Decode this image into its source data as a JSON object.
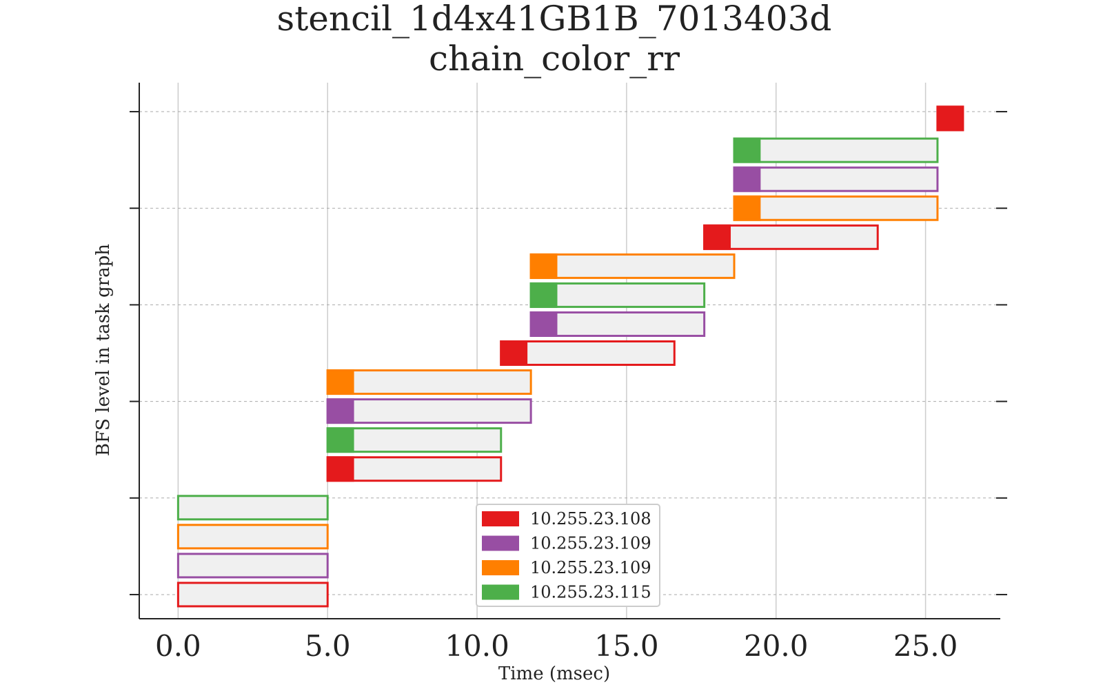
{
  "chart_data": {
    "type": "bar",
    "subtype": "gantt",
    "title": "stencil_1d4x41GB1B_7013403d",
    "subtitle": "chain_color_rr",
    "xlabel": "Time (msec)",
    "ylabel": "BFS level in task graph",
    "xlim": [
      -1.3,
      27.5
    ],
    "ylim": [
      -0.25,
      5.3
    ],
    "x_ticks": [
      "0.0",
      "5.0",
      "10.0",
      "15.0",
      "20.0",
      "25.0"
    ],
    "x_tick_values": [
      0,
      5,
      10,
      15,
      20,
      25
    ],
    "y_tick_values": [
      0,
      1,
      2,
      3,
      4,
      5
    ],
    "grid": {
      "x": true,
      "y": true
    },
    "legend_position": "bottom-center",
    "series": [
      {
        "name": "10.255.23.108",
        "color": "#e41a1c"
      },
      {
        "name": "10.255.23.109",
        "color": "#984ea3"
      },
      {
        "name": "10.255.23.109",
        "color": "#ff7f00"
      },
      {
        "name": "10.255.23.115",
        "color": "#4daf4a"
      }
    ],
    "tasks": [
      {
        "series": 0,
        "level": 0.0,
        "start": 0.0,
        "end": 5.0,
        "setup": 0.0
      },
      {
        "series": 1,
        "level": 0.3,
        "start": 0.0,
        "end": 5.0,
        "setup": 0.0
      },
      {
        "series": 2,
        "level": 0.6,
        "start": 0.0,
        "end": 5.0,
        "setup": 0.0
      },
      {
        "series": 3,
        "level": 0.9,
        "start": 0.0,
        "end": 5.0,
        "setup": 0.0
      },
      {
        "series": 0,
        "level": 1.3,
        "start": 5.0,
        "end": 10.8,
        "setup": 0.85
      },
      {
        "series": 3,
        "level": 1.6,
        "start": 5.0,
        "end": 10.8,
        "setup": 0.85
      },
      {
        "series": 1,
        "level": 1.9,
        "start": 5.0,
        "end": 11.8,
        "setup": 0.85
      },
      {
        "series": 2,
        "level": 2.2,
        "start": 5.0,
        "end": 11.8,
        "setup": 0.85
      },
      {
        "series": 0,
        "level": 2.5,
        "start": 10.8,
        "end": 16.6,
        "setup": 0.85
      },
      {
        "series": 1,
        "level": 2.8,
        "start": 11.8,
        "end": 17.6,
        "setup": 0.85
      },
      {
        "series": 3,
        "level": 3.1,
        "start": 11.8,
        "end": 17.6,
        "setup": 0.85
      },
      {
        "series": 2,
        "level": 3.4,
        "start": 11.8,
        "end": 18.6,
        "setup": 0.85
      },
      {
        "series": 0,
        "level": 3.7,
        "start": 17.6,
        "end": 23.4,
        "setup": 0.85
      },
      {
        "series": 2,
        "level": 4.0,
        "start": 18.6,
        "end": 25.4,
        "setup": 0.85
      },
      {
        "series": 1,
        "level": 4.3,
        "start": 18.6,
        "end": 25.4,
        "setup": 0.85
      },
      {
        "series": 3,
        "level": 4.6,
        "start": 18.6,
        "end": 25.4,
        "setup": 0.85
      },
      {
        "series": 0,
        "level": 4.93,
        "start": 25.4,
        "end": 26.25,
        "setup": 0.85
      }
    ]
  }
}
